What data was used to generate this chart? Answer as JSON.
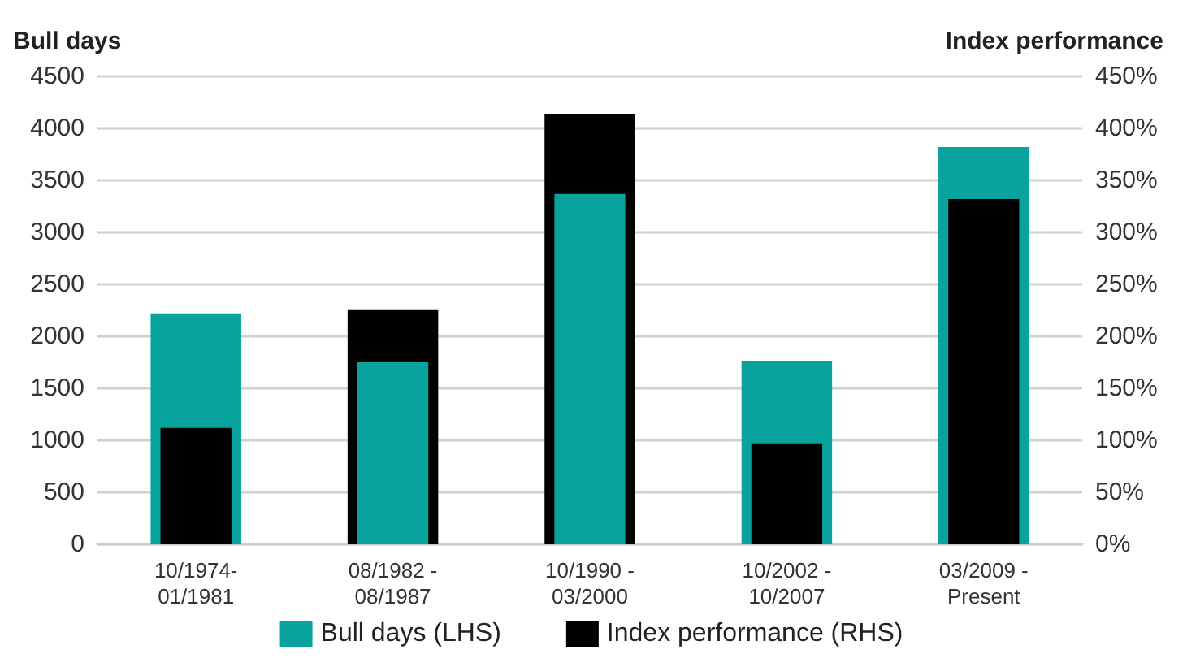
{
  "chart_data": {
    "type": "bar",
    "ylabel": "Bull days",
    "y2label": "Index performance",
    "categories": [
      "10/1974-\n01/1981",
      "08/1982 -\n08/1987",
      "10/1990 -\n03/2000",
      "10/2002 -\n10/2007",
      "03/2009 -\nPresent"
    ],
    "series": [
      {
        "name": "Bull days (LHS)",
        "color": "#08a39c",
        "values": [
          2220,
          1750,
          3370,
          1760,
          3820
        ]
      },
      {
        "name": "Index performance (RHS)",
        "color": "#000000",
        "axis": "y2",
        "values": [
          112,
          226,
          414,
          97,
          332
        ]
      }
    ],
    "ylim": [
      0,
      4500
    ],
    "yticks": [
      0,
      500,
      1000,
      1500,
      2000,
      2500,
      3000,
      3500,
      4000,
      4500
    ],
    "y2lim": [
      0,
      450
    ],
    "y2ticks": [
      {
        "value": 0,
        "label": "0%"
      },
      {
        "value": 50,
        "label": "50%"
      },
      {
        "value": 100,
        "label": "100%"
      },
      {
        "value": 150,
        "label": "150%"
      },
      {
        "value": 200,
        "label": "200%"
      },
      {
        "value": 250,
        "label": "250%"
      },
      {
        "value": 300,
        "label": "300%"
      },
      {
        "value": 350,
        "label": "350%"
      },
      {
        "value": 400,
        "label": "400%"
      },
      {
        "value": 450,
        "label": "450%"
      }
    ],
    "grid": "y",
    "legend": "bottom"
  }
}
